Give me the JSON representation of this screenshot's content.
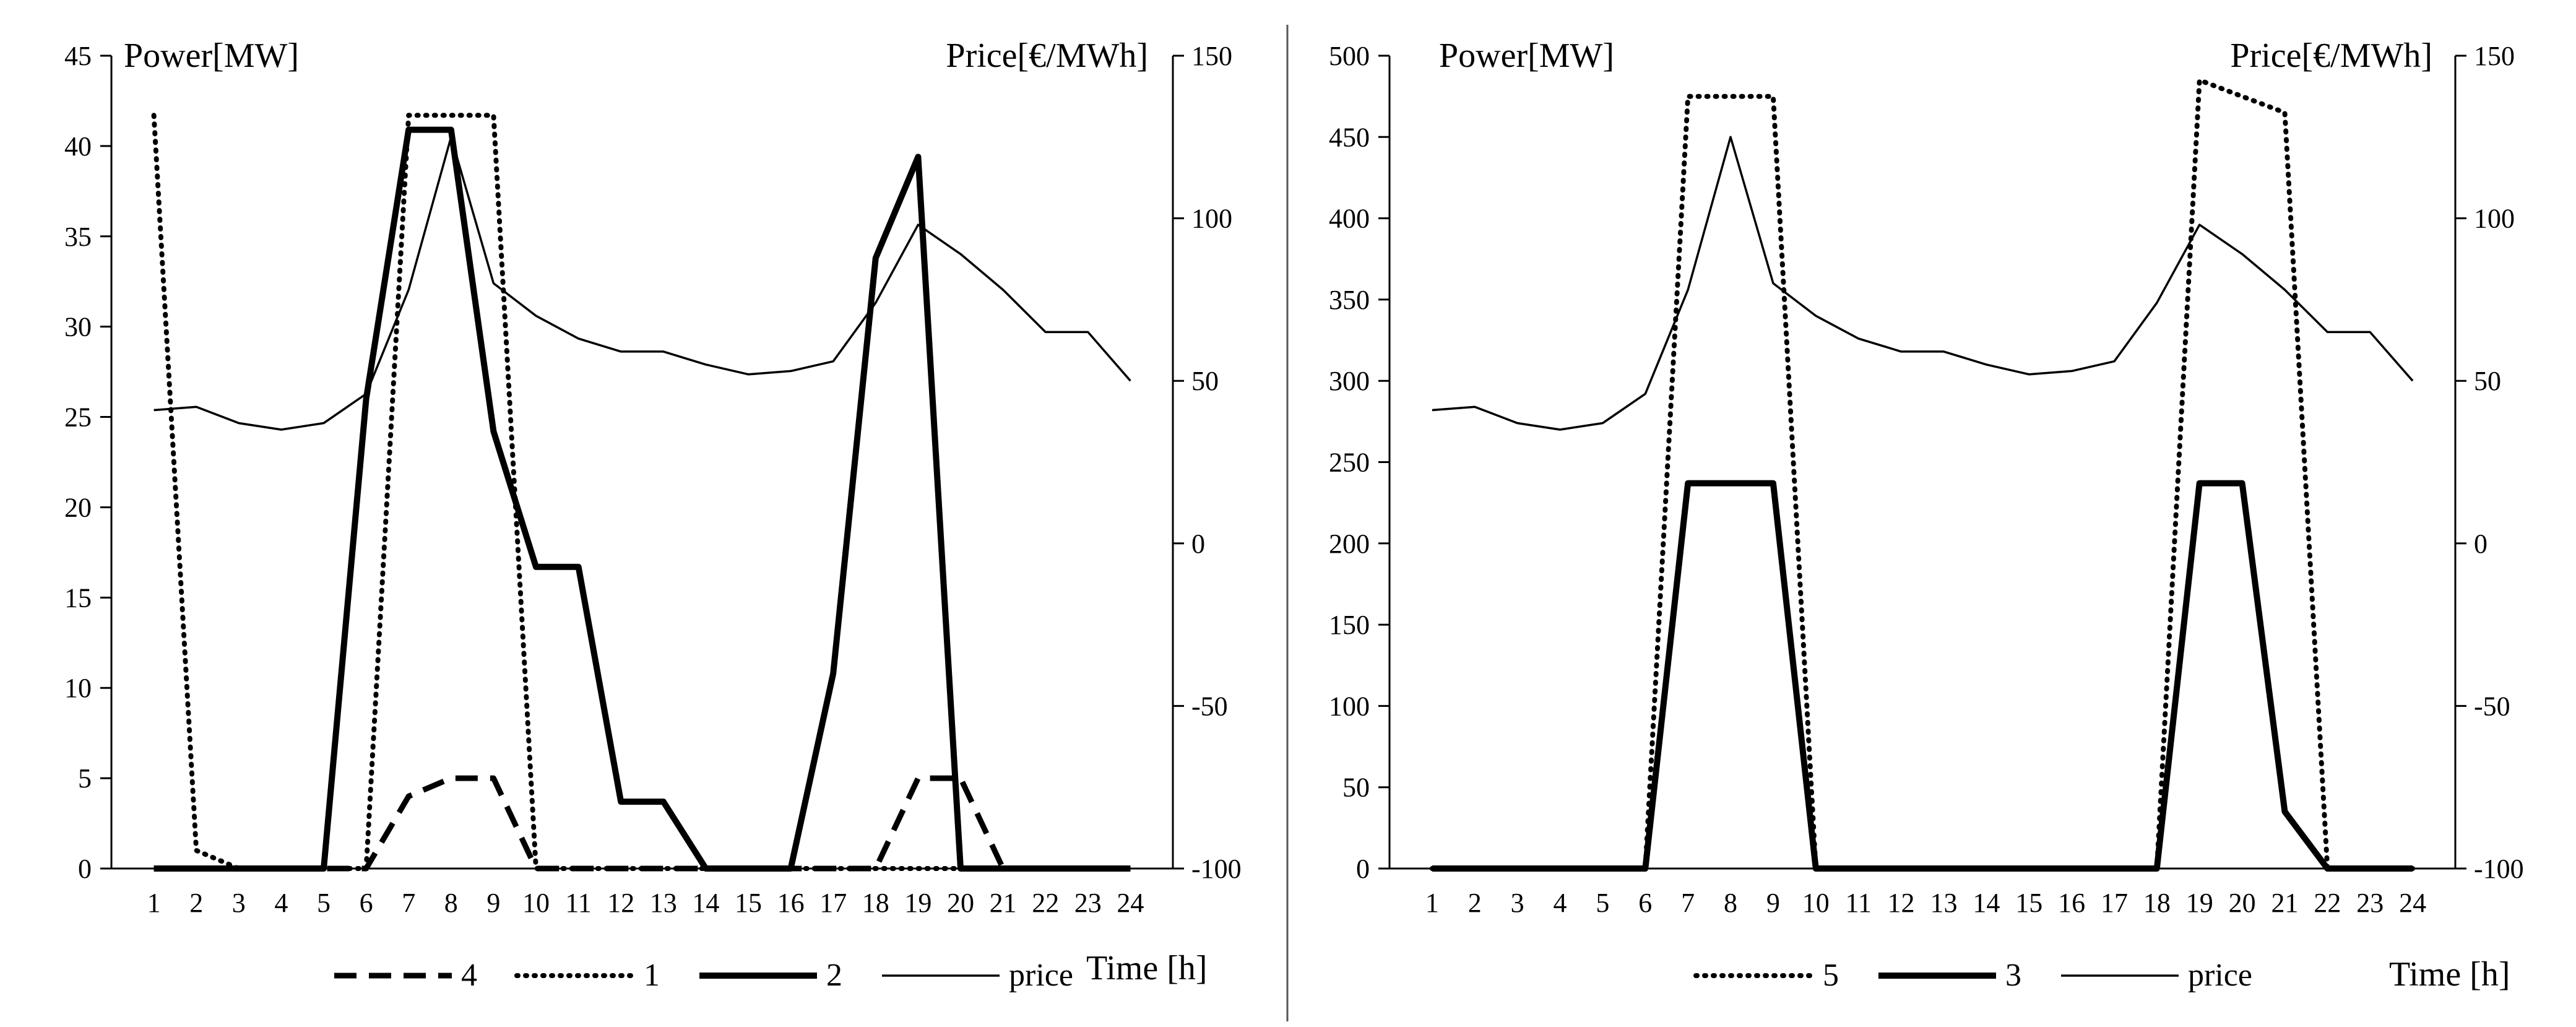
{
  "chart_data": [
    {
      "type": "line",
      "x": [
        1,
        2,
        3,
        4,
        5,
        6,
        7,
        8,
        9,
        10,
        11,
        12,
        13,
        14,
        15,
        16,
        17,
        18,
        19,
        20,
        21,
        22,
        23,
        24
      ],
      "categories": [
        "1",
        "2",
        "3",
        "4",
        "5",
        "6",
        "7",
        "8",
        "9",
        "10",
        "11",
        "12",
        "13",
        "14",
        "15",
        "16",
        "17",
        "18",
        "19",
        "20",
        "21",
        "22",
        "23",
        "24"
      ],
      "ylabel": "Power[MW]",
      "y2label": "Price[€/MWh]",
      "xlabel": "Time  [h]",
      "ylim": [
        0,
        45
      ],
      "yticks": [
        0,
        5,
        10,
        15,
        20,
        25,
        30,
        35,
        40,
        45
      ],
      "y2lim": [
        -100,
        150
      ],
      "y2ticks": [
        -100,
        -50,
        0,
        50,
        100,
        150
      ],
      "series": [
        {
          "name": "4",
          "axis": "left",
          "style": "dashed",
          "values": [
            0,
            0,
            0,
            0,
            0,
            0,
            4,
            5,
            5,
            0,
            0,
            0,
            0,
            0,
            0,
            0,
            0,
            0,
            5,
            5,
            0,
            0,
            0,
            0
          ]
        },
        {
          "name": "1",
          "axis": "left",
          "style": "dotted",
          "values": [
            41.7,
            1,
            0,
            0,
            0,
            0,
            41.7,
            41.7,
            41.7,
            0,
            0,
            0,
            0,
            0,
            0,
            0,
            0,
            0,
            0,
            0,
            0,
            0,
            0,
            0
          ]
        },
        {
          "name": "2",
          "axis": "left",
          "style": "thick",
          "values": [
            0,
            0,
            0,
            0,
            0,
            26,
            40.9,
            40.9,
            24.2,
            16.7,
            16.7,
            3.7,
            3.7,
            0,
            0,
            0,
            10.8,
            33.8,
            39.4,
            0,
            0,
            0,
            0,
            0
          ]
        },
        {
          "name": "price",
          "axis": "right",
          "style": "thin",
          "values": [
            41,
            42,
            37,
            35,
            37,
            46,
            78,
            125,
            80,
            70,
            63,
            59,
            59,
            55,
            52,
            53,
            56,
            74,
            98,
            89,
            78,
            65,
            65,
            50
          ]
        }
      ],
      "legend_order": [
        "4",
        "1",
        "2",
        "price"
      ],
      "legend_position": "bottom"
    },
    {
      "type": "line",
      "x": [
        1,
        2,
        3,
        4,
        5,
        6,
        7,
        8,
        9,
        10,
        11,
        12,
        13,
        14,
        15,
        16,
        17,
        18,
        19,
        20,
        21,
        22,
        23,
        24
      ],
      "categories": [
        "1",
        "2",
        "3",
        "4",
        "5",
        "6",
        "7",
        "8",
        "9",
        "10",
        "11",
        "12",
        "13",
        "14",
        "15",
        "16",
        "17",
        "18",
        "19",
        "20",
        "21",
        "22",
        "23",
        "24"
      ],
      "ylabel": "Power[MW]",
      "y2label": "Price[€/MWh]",
      "xlabel": "Time  [h]",
      "ylim": [
        0,
        500
      ],
      "yticks": [
        0,
        50,
        100,
        150,
        200,
        250,
        300,
        350,
        400,
        450,
        500
      ],
      "y2lim": [
        -100,
        150
      ],
      "y2ticks": [
        -100,
        -50,
        0,
        50,
        100,
        150
      ],
      "series": [
        {
          "name": "5",
          "axis": "left",
          "style": "dotted",
          "values": [
            0,
            0,
            0,
            0,
            0,
            0,
            475,
            475,
            475,
            0,
            0,
            0,
            0,
            0,
            0,
            0,
            0,
            0,
            485,
            475,
            465,
            0,
            0,
            0
          ]
        },
        {
          "name": "3",
          "axis": "left",
          "style": "thick",
          "values": [
            0,
            0,
            0,
            0,
            0,
            0,
            237,
            237,
            237,
            0,
            0,
            0,
            0,
            0,
            0,
            0,
            0,
            0,
            237,
            237,
            35,
            0,
            0,
            0
          ]
        },
        {
          "name": "price",
          "axis": "right",
          "style": "thin",
          "values": [
            41,
            42,
            37,
            35,
            37,
            46,
            78,
            125,
            80,
            70,
            63,
            59,
            59,
            55,
            52,
            53,
            56,
            74,
            98,
            89,
            78,
            65,
            65,
            50
          ]
        }
      ],
      "legend_order": [
        "5",
        "3",
        "price"
      ],
      "legend_position": "bottom"
    }
  ]
}
